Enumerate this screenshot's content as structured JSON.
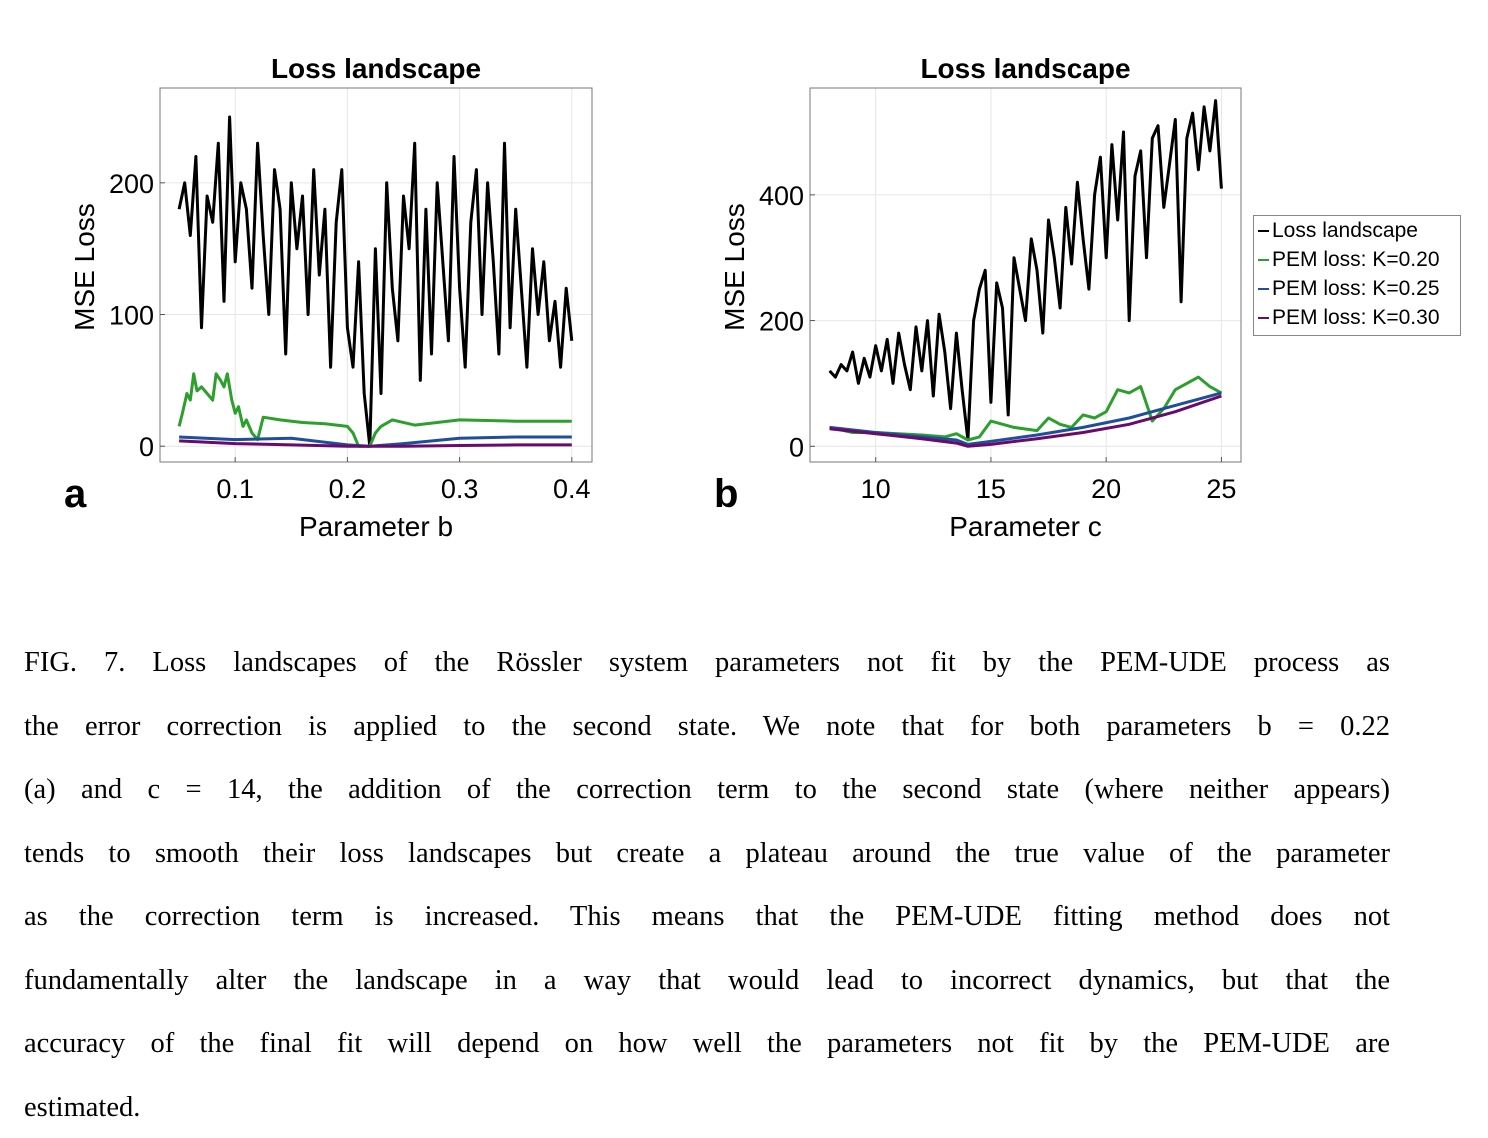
{
  "chart_data": [
    {
      "id": "a",
      "type": "line",
      "panel_label": "a",
      "title": "Loss landscape",
      "xlabel": "Parameter b",
      "ylabel": "MSE Loss",
      "xlim": [
        0.033,
        0.418
      ],
      "ylim": [
        -12,
        272
      ],
      "xticks": [
        0.1,
        0.2,
        0.3,
        0.4
      ],
      "xtick_labels": [
        "0.1",
        "0.2",
        "0.3",
        "0.4"
      ],
      "yticks": [
        0,
        100,
        200
      ],
      "ytick_labels": [
        "0",
        "100",
        "200"
      ],
      "grid": true,
      "series": [
        {
          "name": "Loss landscape",
          "color": "#000000",
          "x_start": 0.05,
          "x_step": 0.005,
          "y": [
            180,
            200,
            160,
            220,
            90,
            190,
            170,
            230,
            110,
            250,
            140,
            200,
            180,
            120,
            230,
            160,
            100,
            210,
            180,
            70,
            200,
            150,
            190,
            100,
            210,
            130,
            180,
            60,
            170,
            210,
            90,
            60,
            140,
            40,
            0,
            150,
            40,
            200,
            120,
            80,
            190,
            150,
            230,
            50,
            180,
            70,
            200,
            140,
            80,
            220,
            120,
            60,
            170,
            210,
            100,
            200,
            140,
            70,
            230,
            90,
            180,
            120,
            60,
            150,
            100,
            140,
            80,
            110,
            60,
            120,
            80
          ]
        },
        {
          "name": "PEM loss: K=0.20",
          "color": "#2ca02c",
          "x": [
            0.05,
            0.053,
            0.057,
            0.06,
            0.063,
            0.066,
            0.07,
            0.075,
            0.08,
            0.083,
            0.087,
            0.09,
            0.093,
            0.097,
            0.1,
            0.103,
            0.107,
            0.11,
            0.115,
            0.12,
            0.125,
            0.14,
            0.16,
            0.18,
            0.2,
            0.205,
            0.21,
            0.22,
            0.225,
            0.23,
            0.24,
            0.26,
            0.3,
            0.35,
            0.4
          ],
          "y": [
            15,
            25,
            40,
            35,
            55,
            42,
            45,
            40,
            35,
            55,
            50,
            45,
            55,
            35,
            25,
            30,
            15,
            20,
            10,
            5,
            22,
            20,
            18,
            17,
            15,
            10,
            0,
            0,
            10,
            15,
            20,
            16,
            20,
            19,
            19
          ]
        },
        {
          "name": "PEM loss: K=0.25",
          "color": "#1f4e9c",
          "x": [
            0.05,
            0.1,
            0.15,
            0.2,
            0.22,
            0.25,
            0.3,
            0.35,
            0.4
          ],
          "y": [
            7,
            5,
            6,
            1,
            0,
            2,
            6,
            7,
            7
          ]
        },
        {
          "name": "PEM loss: K=0.30",
          "color": "#6a0a6a",
          "x": [
            0.05,
            0.1,
            0.15,
            0.2,
            0.22,
            0.25,
            0.3,
            0.35,
            0.4
          ],
          "y": [
            4,
            2,
            1,
            0,
            0,
            0,
            0.5,
            1,
            1
          ]
        }
      ]
    },
    {
      "id": "b",
      "type": "line",
      "panel_label": "b",
      "title": "Loss landscape",
      "xlabel": "Parameter c",
      "ylabel": "MSE Loss",
      "xlim": [
        7.15,
        25.85
      ],
      "ylim": [
        -25,
        570
      ],
      "xticks": [
        10,
        15,
        20,
        25
      ],
      "xtick_labels": [
        "10",
        "15",
        "20",
        "25"
      ],
      "yticks": [
        0,
        200,
        400
      ],
      "ytick_labels": [
        "0",
        "200",
        "400"
      ],
      "grid": true,
      "legend": "outside-right",
      "series": [
        {
          "name": "Loss landscape",
          "color": "#000000",
          "x_start": 8,
          "x_step": 0.25,
          "y": [
            120,
            110,
            130,
            120,
            150,
            100,
            140,
            110,
            160,
            120,
            170,
            100,
            180,
            130,
            90,
            190,
            120,
            200,
            80,
            210,
            150,
            60,
            180,
            90,
            10,
            200,
            250,
            280,
            70,
            260,
            220,
            50,
            300,
            250,
            200,
            330,
            280,
            180,
            360,
            300,
            220,
            380,
            290,
            420,
            330,
            250,
            400,
            460,
            300,
            480,
            360,
            500,
            200,
            430,
            470,
            300,
            490,
            510,
            380,
            450,
            520,
            230,
            490,
            530,
            440,
            540,
            470,
            550,
            410
          ]
        },
        {
          "name": "PEM loss: K=0.20",
          "color": "#2ca02c",
          "x": [
            8,
            9,
            10,
            11,
            12,
            13,
            13.5,
            14,
            14.5,
            15,
            16,
            17,
            17.5,
            18,
            18.5,
            19,
            19.5,
            20,
            20.5,
            21,
            21.5,
            22,
            22.5,
            23,
            23.5,
            24,
            24.5,
            25
          ],
          "y": [
            30,
            22,
            22,
            20,
            18,
            15,
            20,
            10,
            15,
            40,
            30,
            25,
            45,
            35,
            30,
            50,
            45,
            55,
            90,
            85,
            95,
            40,
            60,
            90,
            100,
            110,
            95,
            85
          ]
        },
        {
          "name": "PEM loss: K=0.25",
          "color": "#1f4e9c",
          "x": [
            8,
            10,
            12,
            13.5,
            14,
            15,
            17,
            19,
            21,
            23,
            25
          ],
          "y": [
            30,
            22,
            15,
            10,
            3,
            8,
            18,
            30,
            45,
            65,
            85
          ]
        },
        {
          "name": "PEM loss: K=0.30",
          "color": "#6a0a6a",
          "x": [
            8,
            10,
            12,
            13.5,
            14,
            15,
            17,
            19,
            21,
            23,
            25
          ],
          "y": [
            28,
            20,
            12,
            5,
            0,
            3,
            12,
            22,
            35,
            55,
            80
          ]
        }
      ]
    }
  ],
  "legend": [
    "Loss landscape",
    "PEM loss: K=0.20",
    "PEM loss: K=0.25",
    "PEM loss: K=0.30"
  ],
  "legend_colors": [
    "#000000",
    "#2ca02c",
    "#1f4e9c",
    "#6a0a6a"
  ],
  "caption": {
    "lines": [
      "FIG. 7.  Loss landscapes of the Rössler system parameters not fit by the PEM-UDE process as",
      "the error correction is applied to the second state.  We note that for both parameters b = 0.22",
      "(a) and c = 14, the addition of the correction term to the second state (where neither appears)",
      "tends to smooth their loss landscapes but create a plateau around the true value of the parameter",
      "as the correction term is increased.  This means that the PEM-UDE fitting method does not",
      "fundamentally alter the landscape in a way that would lead to incorrect dynamics, but that the",
      "accuracy of the final fit will depend on how well the parameters not fit by the PEM-UDE are",
      "estimated."
    ]
  }
}
